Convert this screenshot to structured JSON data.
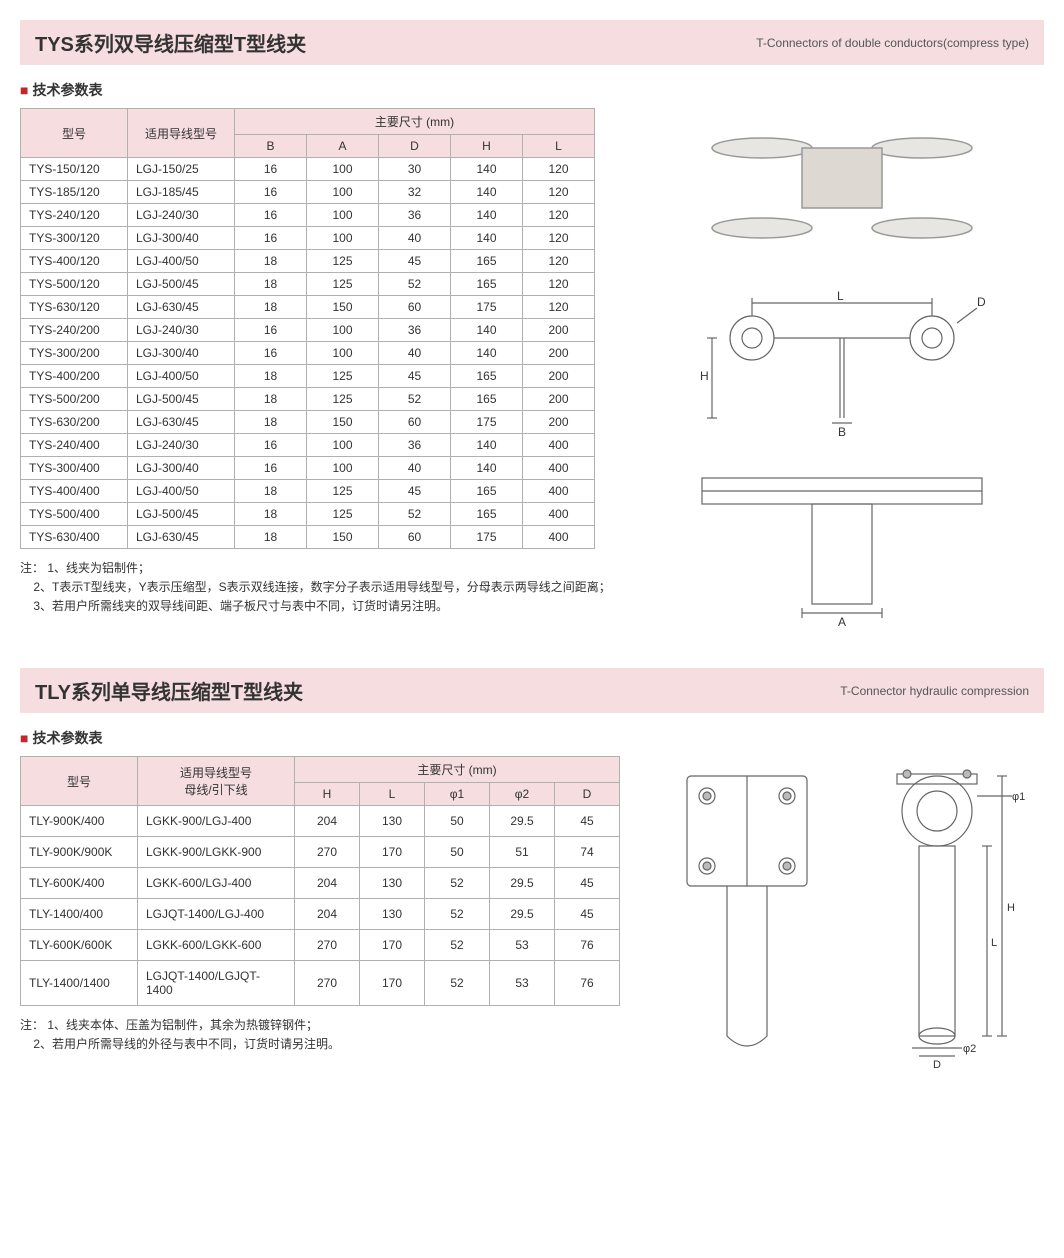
{
  "section1": {
    "title_cn": "TYS系列双导线压缩型T型线夹",
    "title_en": "T-Connectors of double conductors(compress type)",
    "subheader": "技术参数表",
    "table": {
      "col_model": "型号",
      "col_conductor": "适用导线型号",
      "col_dims": "主要尺寸 (mm)",
      "cols": [
        "B",
        "A",
        "D",
        "H",
        "L"
      ],
      "rows": [
        [
          "TYS-150/120",
          "LGJ-150/25",
          "16",
          "100",
          "30",
          "140",
          "120"
        ],
        [
          "TYS-185/120",
          "LGJ-185/45",
          "16",
          "100",
          "32",
          "140",
          "120"
        ],
        [
          "TYS-240/120",
          "LGJ-240/30",
          "16",
          "100",
          "36",
          "140",
          "120"
        ],
        [
          "TYS-300/120",
          "LGJ-300/40",
          "16",
          "100",
          "40",
          "140",
          "120"
        ],
        [
          "TYS-400/120",
          "LGJ-400/50",
          "18",
          "125",
          "45",
          "165",
          "120"
        ],
        [
          "TYS-500/120",
          "LGJ-500/45",
          "18",
          "125",
          "52",
          "165",
          "120"
        ],
        [
          "TYS-630/120",
          "LGJ-630/45",
          "18",
          "150",
          "60",
          "175",
          "120"
        ],
        [
          "TYS-240/200",
          "LGJ-240/30",
          "16",
          "100",
          "36",
          "140",
          "200"
        ],
        [
          "TYS-300/200",
          "LGJ-300/40",
          "16",
          "100",
          "40",
          "140",
          "200"
        ],
        [
          "TYS-400/200",
          "LGJ-400/50",
          "18",
          "125",
          "45",
          "165",
          "200"
        ],
        [
          "TYS-500/200",
          "LGJ-500/45",
          "18",
          "125",
          "52",
          "165",
          "200"
        ],
        [
          "TYS-630/200",
          "LGJ-630/45",
          "18",
          "150",
          "60",
          "175",
          "200"
        ],
        [
          "TYS-240/400",
          "LGJ-240/30",
          "16",
          "100",
          "36",
          "140",
          "400"
        ],
        [
          "TYS-300/400",
          "LGJ-300/40",
          "16",
          "100",
          "40",
          "140",
          "400"
        ],
        [
          "TYS-400/400",
          "LGJ-400/50",
          "18",
          "125",
          "45",
          "165",
          "400"
        ],
        [
          "TYS-500/400",
          "LGJ-500/45",
          "18",
          "125",
          "52",
          "165",
          "400"
        ],
        [
          "TYS-630/400",
          "LGJ-630/45",
          "18",
          "150",
          "60",
          "175",
          "400"
        ]
      ]
    },
    "notes_label": "注：",
    "notes": [
      "1、线夹为铝制件；",
      "2、T表示T型线夹，Y表示压缩型，S表示双线连接，数字分子表示适用导线型号，分母表示两导线之间距离；",
      "3、若用户所需线夹的双导线间距、端子板尺寸与表中不同，订货时请另注明。"
    ],
    "diagram": {
      "labels": {
        "L": "L",
        "D": "D",
        "H": "H",
        "B": "B",
        "A": "A"
      },
      "stroke": "#666666",
      "fill": "#ffffff",
      "font_size": 12
    }
  },
  "section2": {
    "title_cn": "TLY系列单导线压缩型T型线夹",
    "title_en": "T-Connector hydraulic compression",
    "subheader": "技术参数表",
    "table": {
      "col_model": "型号",
      "col_conductor": "适用导线型号\n母线/引下线",
      "col_dims": "主要尺寸 (mm)",
      "cols": [
        "H",
        "L",
        "φ1",
        "φ2",
        "D"
      ],
      "rows": [
        [
          "TLY-900K/400",
          "LGKK-900/LGJ-400",
          "204",
          "130",
          "50",
          "29.5",
          "45"
        ],
        [
          "TLY-900K/900K",
          "LGKK-900/LGKK-900",
          "270",
          "170",
          "50",
          "51",
          "74"
        ],
        [
          "TLY-600K/400",
          "LGKK-600/LGJ-400",
          "204",
          "130",
          "52",
          "29.5",
          "45"
        ],
        [
          "TLY-1400/400",
          "LGJQT-1400/LGJ-400",
          "204",
          "130",
          "52",
          "29.5",
          "45"
        ],
        [
          "TLY-600K/600K",
          "LGKK-600/LGKK-600",
          "270",
          "170",
          "52",
          "53",
          "76"
        ],
        [
          "TLY-1400/1400",
          "LGJQT-1400/LGJQT-1400",
          "270",
          "170",
          "52",
          "53",
          "76"
        ]
      ]
    },
    "notes_label": "注：",
    "notes": [
      "1、线夹本体、压盖为铝制件，其余为热镀锌钢件；",
      "2、若用户所需导线的外径与表中不同，订货时请另注明。"
    ],
    "diagram": {
      "labels": {
        "phi1": "φ1",
        "H": "H",
        "L": "L",
        "phi2": "φ2",
        "D": "D"
      },
      "stroke": "#666666",
      "fill": "#ffffff",
      "font_size": 11
    }
  }
}
